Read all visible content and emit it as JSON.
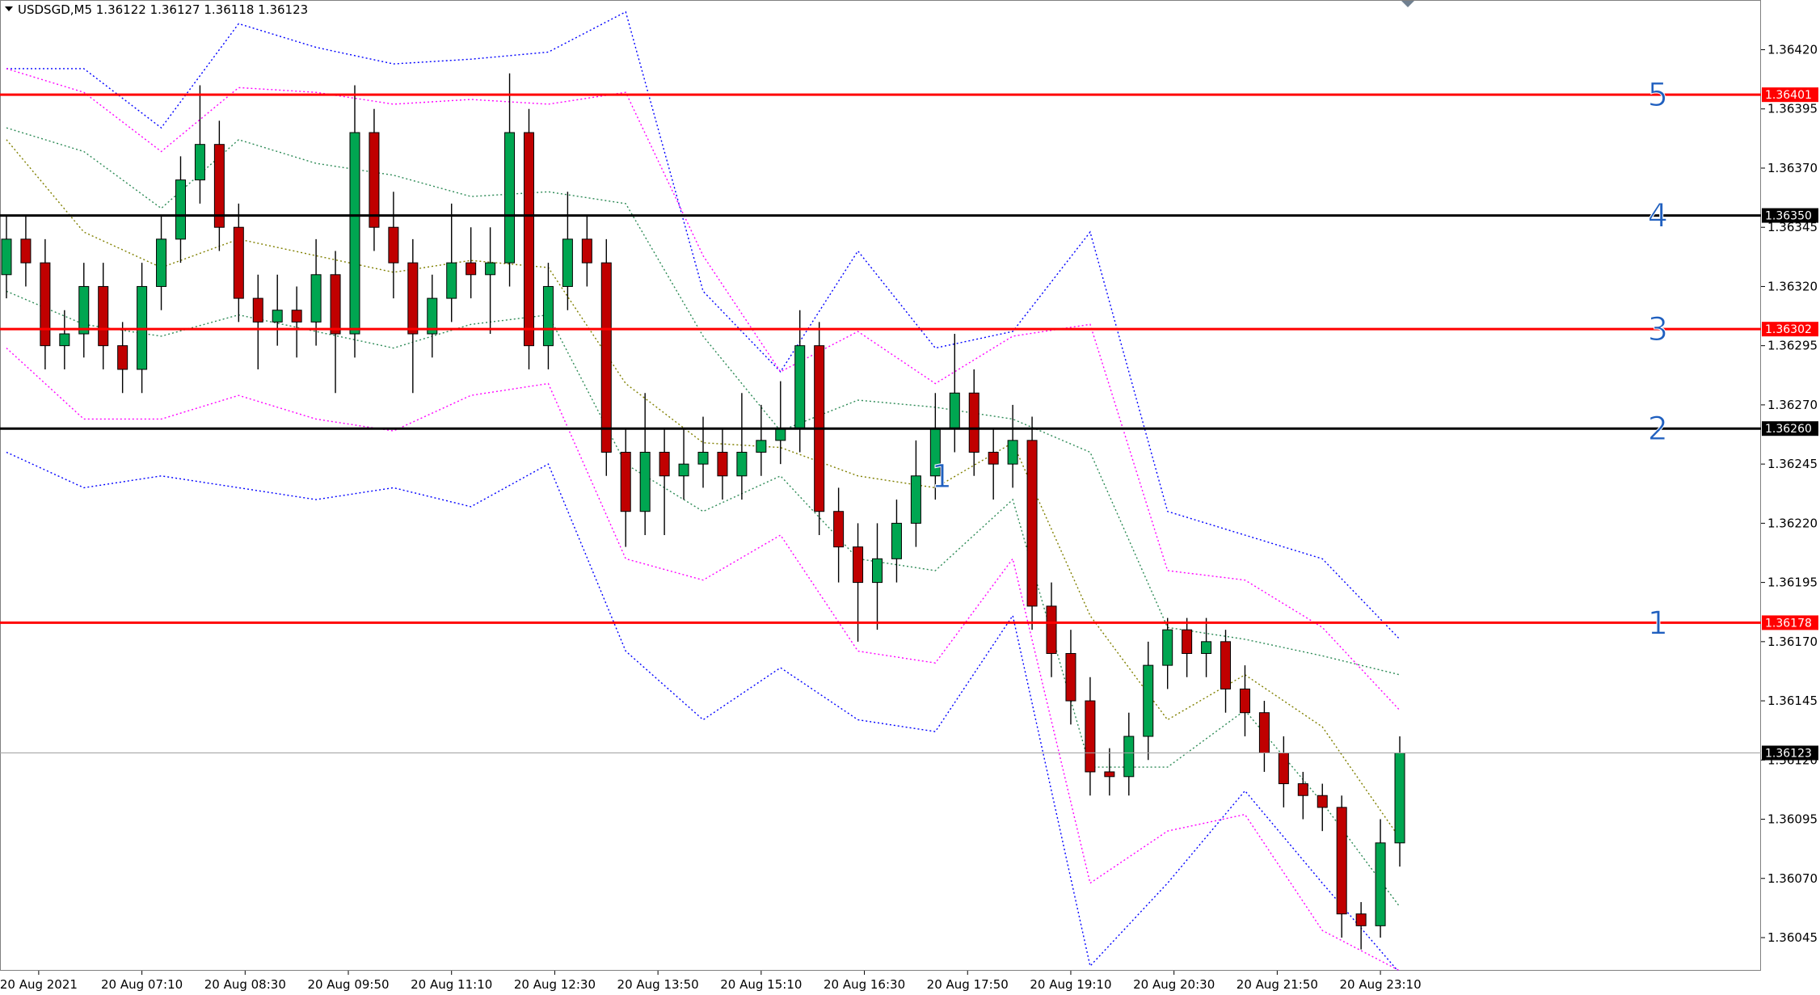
{
  "chart_data": {
    "type": "candlestick",
    "title": "USDSGD,M5  1.36122 1.36127 1.36118 1.36123",
    "up_color": "#00a651",
    "down_color": "#c00000",
    "x": [
      0,
      3,
      6,
      9,
      12,
      15,
      18,
      21,
      24,
      27,
      30,
      33,
      36,
      39,
      42,
      45,
      48,
      51,
      54,
      57,
      60,
      63,
      66,
      69,
      72,
      75,
      78,
      81,
      84,
      87,
      90,
      93,
      96,
      99,
      102,
      105,
      108,
      111,
      114,
      117,
      120,
      123,
      126,
      129,
      132,
      135,
      138,
      141,
      144,
      147,
      150,
      153,
      156,
      159,
      162,
      165,
      168,
      171,
      174,
      177,
      180,
      183,
      186,
      189,
      192,
      195,
      198,
      201,
      204,
      207,
      210,
      213,
      216
    ],
    "open": [
      1.36325,
      1.3634,
      1.3633,
      1.36295,
      1.363,
      1.3632,
      1.36295,
      1.36285,
      1.3632,
      1.3634,
      1.36365,
      1.3638,
      1.36345,
      1.36315,
      1.36305,
      1.3631,
      1.36305,
      1.36325,
      1.363,
      1.36385,
      1.36345,
      1.3633,
      1.363,
      1.36315,
      1.3633,
      1.36325,
      1.3633,
      1.36385,
      1.36295,
      1.3632,
      1.3634,
      1.3633,
      1.3625,
      1.36225,
      1.3625,
      1.3624,
      1.36245,
      1.3625,
      1.3624,
      1.3625,
      1.36255,
      1.3626,
      1.36295,
      1.36225,
      1.3621,
      1.36195,
      1.36205,
      1.3622,
      1.3624,
      1.3626,
      1.36275,
      1.3625,
      1.36245,
      1.36255,
      1.36185,
      1.36165,
      1.36145,
      1.36115,
      1.36113,
      1.3613,
      1.3616,
      1.36175,
      1.36165,
      1.3617,
      1.3615,
      1.3614,
      1.36123,
      1.3611,
      1.36105,
      1.361,
      1.36055,
      1.3605,
      1.36085
    ],
    "high": [
      1.3635,
      1.3635,
      1.3634,
      1.3631,
      1.3633,
      1.3633,
      1.36305,
      1.3633,
      1.3635,
      1.36375,
      1.36405,
      1.3639,
      1.36355,
      1.36325,
      1.36325,
      1.3632,
      1.3634,
      1.36335,
      1.36405,
      1.36395,
      1.3636,
      1.3634,
      1.36325,
      1.36355,
      1.36345,
      1.36345,
      1.3641,
      1.36395,
      1.3633,
      1.3636,
      1.3635,
      1.3634,
      1.3626,
      1.36275,
      1.3626,
      1.3626,
      1.36265,
      1.3626,
      1.36275,
      1.3627,
      1.3628,
      1.3631,
      1.36305,
      1.36235,
      1.3622,
      1.3622,
      1.3623,
      1.36255,
      1.36275,
      1.363,
      1.36285,
      1.3626,
      1.3627,
      1.36265,
      1.36195,
      1.36175,
      1.36155,
      1.36125,
      1.3614,
      1.3617,
      1.3618,
      1.3618,
      1.3618,
      1.36175,
      1.3616,
      1.36145,
      1.3613,
      1.36115,
      1.3611,
      1.36105,
      1.3606,
      1.36095,
      1.3613
    ],
    "low": [
      1.36315,
      1.3632,
      1.36285,
      1.36285,
      1.3629,
      1.36285,
      1.36275,
      1.36275,
      1.3631,
      1.3633,
      1.36355,
      1.36335,
      1.36305,
      1.36285,
      1.36295,
      1.3629,
      1.36295,
      1.36275,
      1.3629,
      1.36335,
      1.36315,
      1.36275,
      1.3629,
      1.36305,
      1.36315,
      1.363,
      1.3632,
      1.36285,
      1.36285,
      1.3631,
      1.3632,
      1.3624,
      1.3621,
      1.36215,
      1.36215,
      1.3623,
      1.36235,
      1.3623,
      1.3623,
      1.3624,
      1.36245,
      1.3625,
      1.36215,
      1.36195,
      1.3617,
      1.36175,
      1.36195,
      1.3621,
      1.3623,
      1.3625,
      1.3624,
      1.3623,
      1.36235,
      1.36175,
      1.36155,
      1.36135,
      1.36105,
      1.36105,
      1.36105,
      1.3612,
      1.3615,
      1.36155,
      1.36155,
      1.3614,
      1.3613,
      1.36115,
      1.361,
      1.36095,
      1.3609,
      1.36045,
      1.3604,
      1.36045,
      1.36075
    ],
    "close": [
      1.3634,
      1.3633,
      1.36295,
      1.363,
      1.3632,
      1.36295,
      1.36285,
      1.3632,
      1.3634,
      1.36365,
      1.3638,
      1.36345,
      1.36315,
      1.36305,
      1.3631,
      1.36305,
      1.36325,
      1.363,
      1.36385,
      1.36345,
      1.3633,
      1.363,
      1.36315,
      1.3633,
      1.36325,
      1.3633,
      1.36385,
      1.36295,
      1.3632,
      1.3634,
      1.3633,
      1.3625,
      1.36225,
      1.3625,
      1.3624,
      1.36245,
      1.3625,
      1.3624,
      1.3625,
      1.36255,
      1.3626,
      1.36295,
      1.36225,
      1.3621,
      1.36195,
      1.36205,
      1.3622,
      1.3624,
      1.3626,
      1.36275,
      1.3625,
      1.36245,
      1.36255,
      1.36185,
      1.36165,
      1.36145,
      1.36115,
      1.36113,
      1.3613,
      1.3616,
      1.36175,
      1.36165,
      1.3617,
      1.3615,
      1.3614,
      1.36123,
      1.3611,
      1.36105,
      1.361,
      1.36055,
      1.3605,
      1.36085,
      1.36123
    ],
    "band_x": [
      0,
      12,
      24,
      36,
      48,
      60,
      72,
      84,
      96,
      108,
      120,
      132,
      144,
      156,
      168,
      180,
      192,
      204,
      216
    ],
    "bands": [
      {
        "color": "#0000ff",
        "values": [
          1.36412,
          1.36412,
          1.36387,
          1.36431,
          1.36421,
          1.36414,
          1.36416,
          1.36419,
          1.36436,
          1.36318,
          1.36284,
          1.36335,
          1.36294,
          1.36301,
          1.36343,
          1.36225,
          1.36215,
          1.36205,
          1.36171
        ]
      },
      {
        "color": "#0000ff",
        "values": [
          1.3625,
          1.36235,
          1.3624,
          1.36235,
          1.3623,
          1.36235,
          1.36227,
          1.36245,
          1.36166,
          1.36137,
          1.36159,
          1.36137,
          1.36132,
          1.36181,
          1.36033,
          1.36068,
          1.36107,
          1.36068,
          1.3603
        ]
      },
      {
        "color": "#ff00ff",
        "values": [
          1.36412,
          1.36402,
          1.36377,
          1.36404,
          1.36402,
          1.36397,
          1.36399,
          1.36397,
          1.36402,
          1.36333,
          1.36284,
          1.36301,
          1.36279,
          1.36299,
          1.36304,
          1.362,
          1.36196,
          1.36176,
          1.36141
        ]
      },
      {
        "color": "#ff00ff",
        "values": [
          1.36294,
          1.36264,
          1.36264,
          1.36274,
          1.36264,
          1.36259,
          1.36274,
          1.36279,
          1.36205,
          1.36196,
          1.36215,
          1.36166,
          1.36161,
          1.36205,
          1.36068,
          1.3609,
          1.36097,
          1.36048,
          1.36031
        ]
      },
      {
        "color": "#2e8b57",
        "values": [
          1.36387,
          1.36377,
          1.36353,
          1.36382,
          1.36372,
          1.36367,
          1.36358,
          1.3636,
          1.36355,
          1.36299,
          1.36259,
          1.36272,
          1.36269,
          1.36264,
          1.3625,
          1.36176,
          1.36171,
          1.36164,
          1.36156
        ]
      },
      {
        "color": "#2e8b57",
        "values": [
          1.36318,
          1.36304,
          1.36299,
          1.36308,
          1.36301,
          1.36294,
          1.36304,
          1.36308,
          1.36245,
          1.36225,
          1.3624,
          1.36205,
          1.362,
          1.3623,
          1.36117,
          1.36117,
          1.36141,
          1.36102,
          1.36058
        ]
      },
      {
        "color": "#808000",
        "values": [
          1.36382,
          1.36343,
          1.36328,
          1.3634,
          1.36333,
          1.36326,
          1.36331,
          1.36328,
          1.36279,
          1.36254,
          1.36252,
          1.3624,
          1.36235,
          1.36254,
          1.36181,
          1.36137,
          1.36156,
          1.36134,
          1.36087
        ]
      }
    ],
    "levels": [
      {
        "value": 1.36401,
        "label": "1.36401",
        "tag": "5",
        "color": "#ff0000"
      },
      {
        "value": 1.3635,
        "label": "1.36350",
        "tag": "4",
        "color": "#000000"
      },
      {
        "value": 1.36302,
        "label": "1.36302",
        "tag": "3",
        "color": "#ff0000"
      },
      {
        "value": 1.3626,
        "label": "1.36260",
        "tag": "2",
        "color": "#000000"
      },
      {
        "value": 1.36178,
        "label": "1.36178",
        "tag": "1",
        "color": "#ff0000"
      }
    ],
    "tag_x": 256,
    "current_price": {
      "value": 1.36123,
      "label": "1.36123"
    },
    "annotations": [
      {
        "text": "1",
        "x": 145,
        "y": 1.3624
      }
    ],
    "xlim": [
      -1,
      272
    ],
    "ylim": [
      1.36031,
      1.36441
    ],
    "xticks": [
      {
        "value": 5,
        "label": "20 Aug 2021"
      },
      {
        "value": 21,
        "label": "20 Aug 07:10"
      },
      {
        "value": 37,
        "label": "20 Aug 08:30"
      },
      {
        "value": 53,
        "label": "20 Aug 09:50"
      },
      {
        "value": 69,
        "label": "20 Aug 11:10"
      },
      {
        "value": 85,
        "label": "20 Aug 12:30"
      },
      {
        "value": 101,
        "label": "20 Aug 13:50"
      },
      {
        "value": 117,
        "label": "20 Aug 15:10"
      },
      {
        "value": 133,
        "label": "20 Aug 16:30"
      },
      {
        "value": 149,
        "label": "20 Aug 17:50"
      },
      {
        "value": 165,
        "label": "20 Aug 19:10"
      },
      {
        "value": 181,
        "label": "20 Aug 20:30"
      },
      {
        "value": 197,
        "label": "20 Aug 21:50"
      },
      {
        "value": 213,
        "label": "20 Aug 23:10"
      }
    ],
    "yticks": [
      {
        "value": 1.3642,
        "label": "1.36420"
      },
      {
        "value": 1.36395,
        "label": "1.36395"
      },
      {
        "value": 1.3637,
        "label": "1.36370"
      },
      {
        "value": 1.36345,
        "label": "1.36345"
      },
      {
        "value": 1.3632,
        "label": "1.36320"
      },
      {
        "value": 1.36295,
        "label": "1.36295"
      },
      {
        "value": 1.3627,
        "label": "1.36270"
      },
      {
        "value": 1.36245,
        "label": "1.36245"
      },
      {
        "value": 1.3622,
        "label": "1.36220"
      },
      {
        "value": 1.36195,
        "label": "1.36195"
      },
      {
        "value": 1.3617,
        "label": "1.36170"
      },
      {
        "value": 1.36145,
        "label": "1.36145"
      },
      {
        "value": 1.3612,
        "label": "1.36120"
      },
      {
        "value": 1.36095,
        "label": "1.36095"
      },
      {
        "value": 1.3607,
        "label": "1.36070"
      },
      {
        "value": 1.36045,
        "label": "1.36045"
      }
    ]
  }
}
